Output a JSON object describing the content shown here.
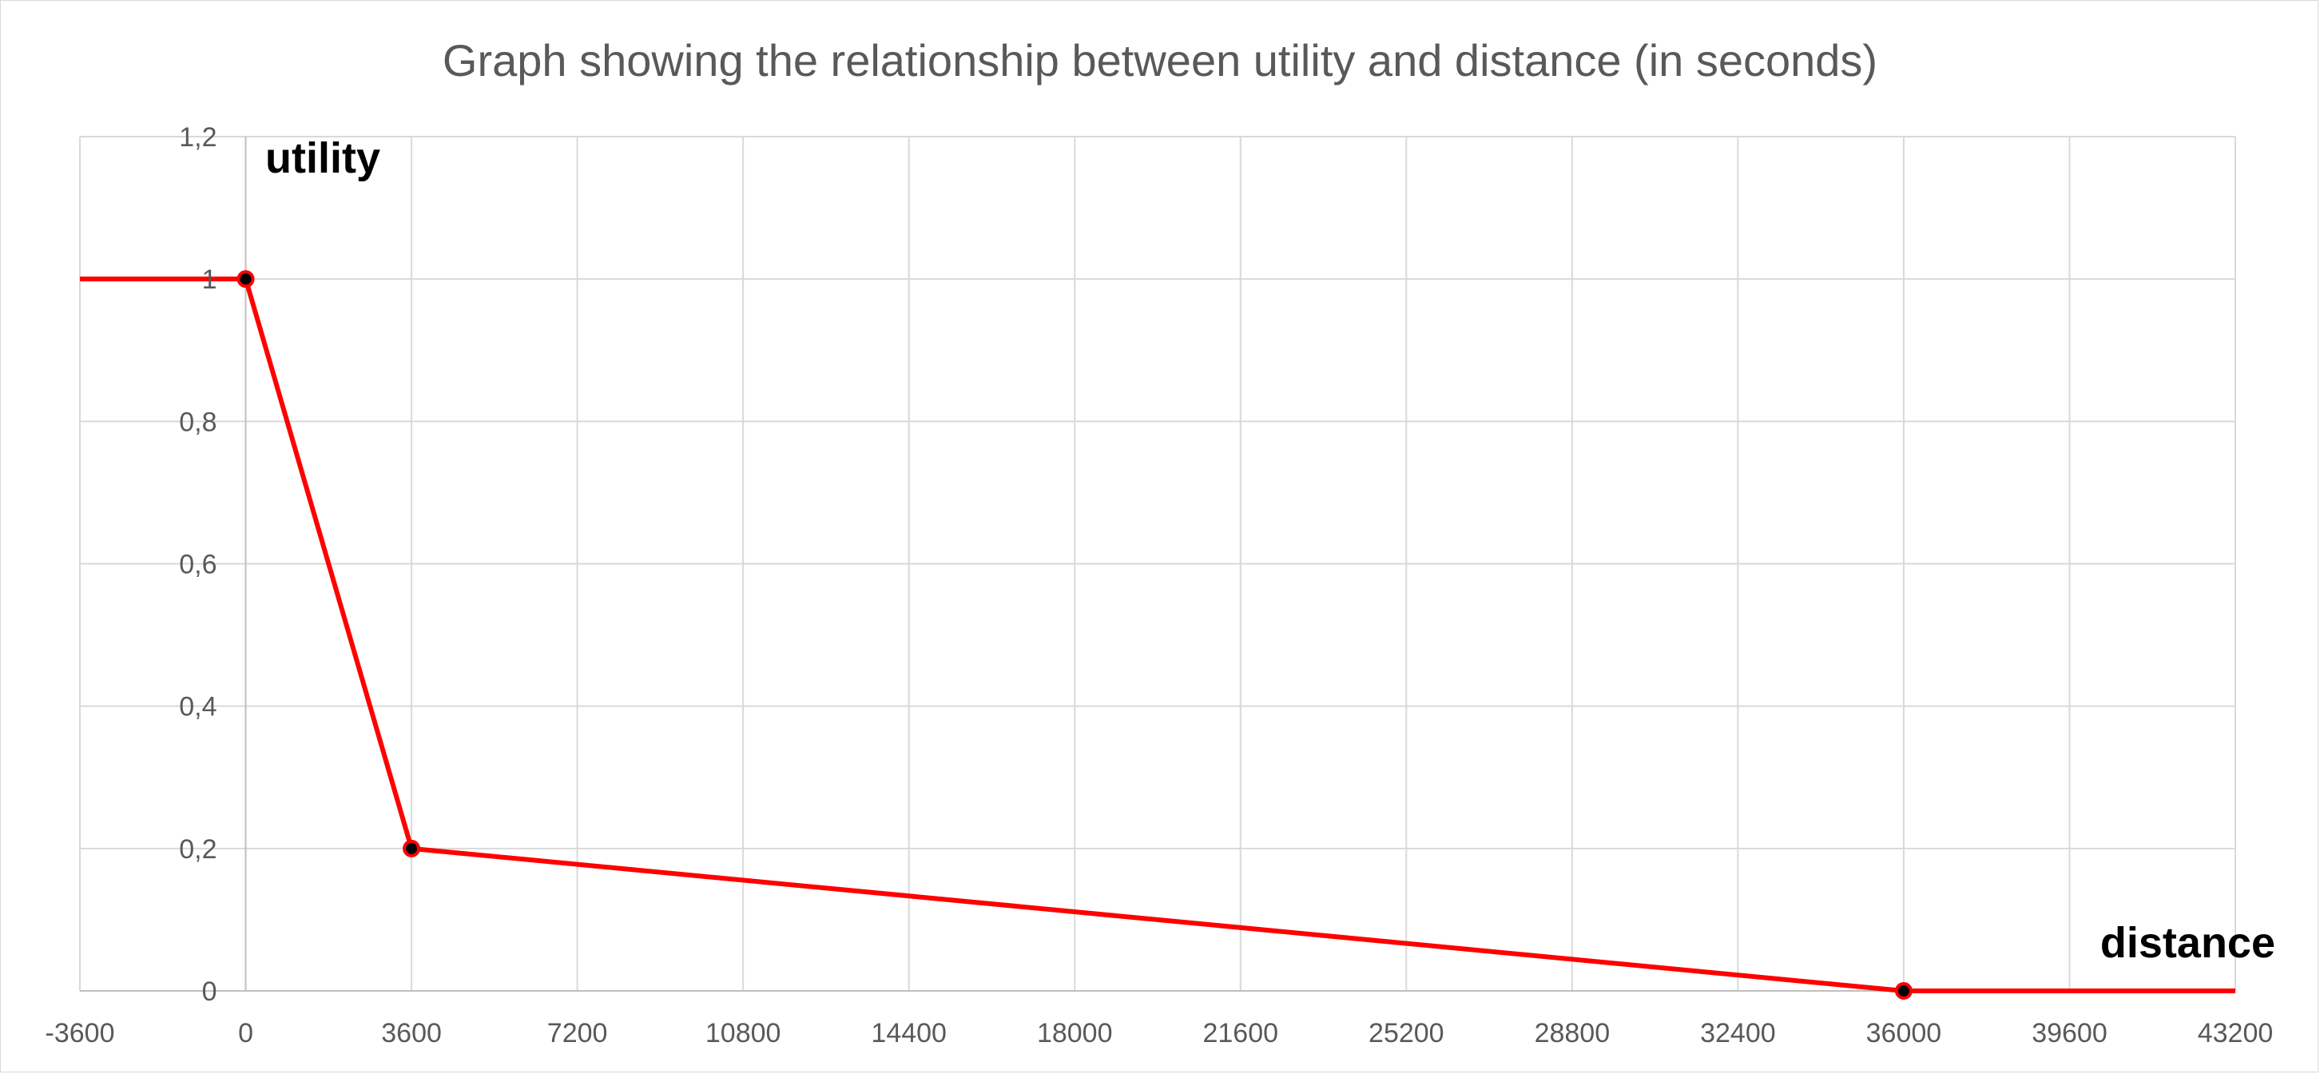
{
  "chart_data": {
    "type": "line",
    "title": "Graph showing the relationship between utility and distance (in seconds)",
    "xlabel": "distance",
    "ylabel": "utility",
    "xlim": [
      -3600,
      43200
    ],
    "ylim": [
      0,
      1.2
    ],
    "x_ticks": [
      -3600,
      0,
      3600,
      7200,
      10800,
      14400,
      18000,
      21600,
      25200,
      28800,
      32400,
      36000,
      39600,
      43200
    ],
    "x_tick_labels": [
      "-3600",
      "0",
      "3600",
      "7200",
      "10800",
      "14400",
      "18000",
      "21600",
      "25200",
      "28800",
      "32400",
      "36000",
      "39600",
      "43200"
    ],
    "y_ticks": [
      0,
      0.2,
      0.4,
      0.6,
      0.8,
      1,
      1.2
    ],
    "y_tick_labels": [
      "0",
      "0,2",
      "0,4",
      "0,6",
      "0,8",
      "1",
      "1,2"
    ],
    "grid": true,
    "legend": "none",
    "series": [
      {
        "color": "#ff0000",
        "x": [
          -3600,
          0,
          3600,
          36000,
          43200
        ],
        "y": [
          1,
          1,
          0.2,
          0,
          0
        ]
      }
    ],
    "markers": {
      "x": [
        0,
        3600,
        36000
      ],
      "y": [
        1,
        0.2,
        0
      ],
      "fill": "#000000",
      "stroke": "#ff0000"
    },
    "colors": {
      "grid": "#d9d9d9",
      "axis": "#bfbfbf",
      "tick_text": "#595959",
      "title": "#595959"
    }
  }
}
